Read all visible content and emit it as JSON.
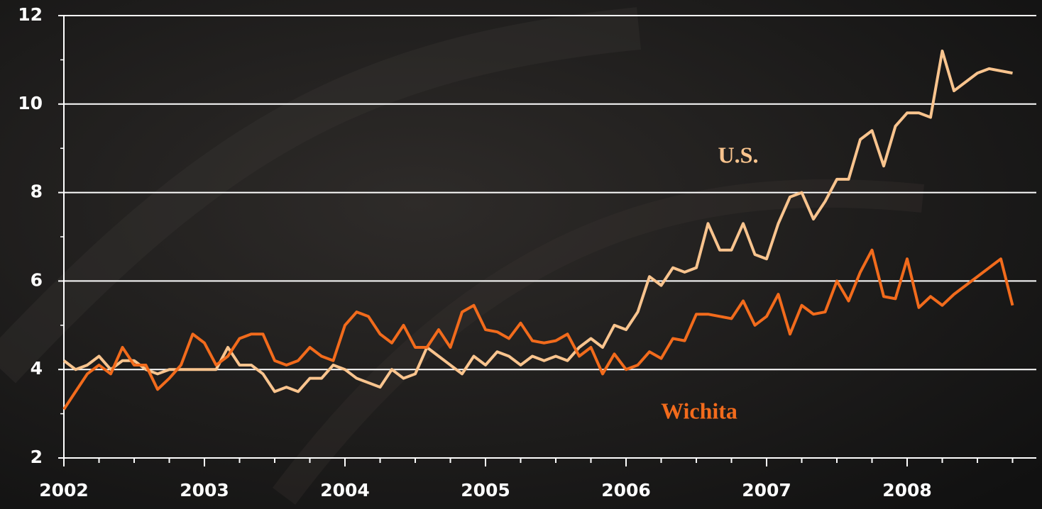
{
  "chart_data": {
    "type": "line",
    "categories": [
      "2002",
      null,
      null,
      null,
      null,
      null,
      null,
      null,
      null,
      null,
      null,
      null,
      "2003",
      null,
      null,
      null,
      null,
      null,
      null,
      null,
      null,
      null,
      null,
      null,
      "2004",
      null,
      null,
      null,
      null,
      null,
      null,
      null,
      null,
      null,
      null,
      null,
      "2005",
      null,
      null,
      null,
      null,
      null,
      null,
      null,
      null,
      null,
      null,
      null,
      "2006",
      null,
      null,
      null,
      null,
      null,
      null,
      null,
      null,
      null,
      null,
      null,
      "2007",
      null,
      null,
      null,
      null,
      null,
      null,
      null,
      null,
      null,
      null,
      null,
      "2008",
      null,
      null,
      null,
      null,
      null,
      null,
      null,
      null,
      null
    ],
    "series": [
      {
        "name": "U.S.",
        "color": "#f9c48e",
        "values": [
          4.2,
          4.0,
          4.1,
          4.3,
          4.0,
          4.2,
          4.2,
          4.0,
          3.9,
          4.0,
          4.0,
          4.0,
          4.0,
          4.0,
          4.5,
          4.1,
          4.1,
          3.9,
          3.5,
          3.6,
          3.5,
          3.8,
          3.8,
          4.1,
          4.0,
          3.8,
          3.7,
          3.6,
          4.0,
          3.8,
          3.9,
          4.5,
          4.3,
          4.1,
          3.9,
          4.3,
          4.1,
          4.4,
          4.3,
          4.1,
          4.3,
          4.2,
          4.3,
          4.2,
          4.5,
          4.7,
          4.5,
          5.0,
          4.9,
          5.3,
          6.1,
          5.9,
          6.3,
          6.2,
          6.3,
          7.3,
          6.7,
          6.7,
          7.3,
          6.6,
          6.5,
          7.3,
          7.9,
          8.0,
          7.4,
          7.8,
          8.3,
          8.3,
          9.2,
          9.4,
          8.6,
          9.5,
          9.8,
          9.8,
          9.7,
          11.2,
          10.3,
          10.5,
          10.7,
          10.8,
          10.75,
          10.7
        ]
      },
      {
        "name": "Wichita",
        "color": "#f26b1c",
        "values": [
          3.1,
          3.5,
          3.9,
          4.1,
          3.9,
          4.5,
          4.1,
          4.1,
          3.55,
          3.8,
          4.1,
          4.8,
          4.6,
          4.1,
          4.3,
          4.7,
          4.8,
          4.8,
          4.2,
          4.1,
          4.2,
          4.5,
          4.3,
          4.2,
          5.0,
          5.3,
          5.2,
          4.8,
          4.6,
          5.0,
          4.5,
          4.5,
          4.9,
          4.5,
          5.3,
          5.45,
          4.9,
          4.85,
          4.7,
          5.05,
          4.65,
          4.6,
          4.65,
          4.8,
          4.3,
          4.5,
          3.9,
          4.35,
          4.0,
          4.1,
          4.4,
          4.25,
          4.7,
          4.65,
          5.25,
          5.25,
          5.2,
          5.15,
          5.55,
          5.0,
          5.2,
          5.7,
          4.8,
          5.45,
          5.25,
          5.3,
          6.0,
          5.55,
          6.2,
          6.7,
          5.65,
          5.6,
          6.5,
          5.4,
          5.65,
          5.45,
          5.7,
          5.9,
          6.1,
          6.3,
          6.5,
          5.45
        ]
      }
    ],
    "annotations": [
      {
        "text": "U.S.",
        "series": 0
      },
      {
        "text": "Wichita",
        "series": 1
      }
    ],
    "ylim": [
      2,
      12
    ],
    "yticks": [
      2,
      4,
      6,
      8,
      10,
      12
    ],
    "grid": true
  }
}
